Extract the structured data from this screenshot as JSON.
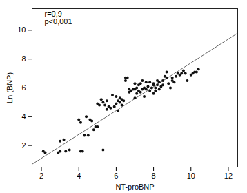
{
  "chart_data": {
    "type": "scatter",
    "xlabel": "NT-proBNP",
    "ylabel": "Ln (BNP)",
    "annotations": [
      "r=0,9",
      "p<0,001"
    ],
    "xlim": [
      1.5,
      12.5
    ],
    "ylim": [
      0.5,
      11.5
    ],
    "xticks": [
      2,
      4,
      6,
      8,
      10,
      12
    ],
    "yticks": [
      2,
      4,
      6,
      8,
      10
    ],
    "series": [
      {
        "type": "scatter",
        "color": "#111111",
        "x": [
          2.1,
          2.2,
          2.9,
          3.0,
          3.0,
          3.2,
          3.3,
          3.5,
          4.0,
          4.1,
          4.1,
          4.2,
          4.3,
          4.4,
          4.5,
          4.6,
          4.7,
          4.8,
          4.9,
          5.0,
          5.0,
          5.1,
          5.2,
          5.3,
          5.3,
          5.4,
          5.5,
          5.5,
          5.6,
          5.7,
          5.8,
          5.9,
          6.0,
          6.0,
          6.1,
          6.1,
          6.2,
          6.2,
          6.3,
          6.3,
          6.4,
          6.5,
          6.5,
          6.6,
          6.7,
          6.7,
          6.8,
          6.9,
          7.0,
          7.0,
          7.0,
          7.1,
          7.1,
          7.2,
          7.2,
          7.3,
          7.3,
          7.4,
          7.4,
          7.5,
          7.5,
          7.6,
          7.6,
          7.7,
          7.8,
          7.8,
          7.9,
          8.0,
          8.0,
          8.0,
          8.1,
          8.1,
          8.2,
          8.2,
          8.3,
          8.3,
          8.4,
          8.5,
          8.5,
          8.6,
          8.7,
          8.7,
          8.8,
          8.9,
          9.0,
          9.0,
          9.1,
          9.2,
          9.3,
          9.4,
          9.5,
          9.6,
          9.7,
          9.8,
          10.0,
          10.1,
          10.2,
          10.3,
          10.4
        ],
        "values": [
          1.6,
          1.5,
          1.5,
          2.3,
          1.6,
          2.4,
          1.6,
          1.7,
          3.8,
          3.6,
          1.6,
          1.6,
          2.7,
          4.0,
          2.7,
          3.8,
          3.7,
          3.1,
          3.3,
          4.9,
          3.3,
          4.8,
          5.2,
          5.0,
          1.7,
          4.8,
          4.5,
          5.1,
          4.7,
          4.6,
          5.5,
          4.7,
          4.9,
          5.4,
          5.1,
          4.4,
          5.3,
          5.0,
          4.8,
          5.2,
          5.1,
          6.7,
          6.5,
          6.7,
          5.9,
          5.7,
          5.8,
          5.9,
          5.3,
          5.9,
          6.3,
          5.6,
          6.0,
          5.8,
          6.2,
          5.7,
          6.3,
          5.9,
          6.5,
          5.4,
          6.0,
          5.9,
          6.4,
          6.1,
          5.8,
          6.4,
          6.0,
          6.2,
          6.3,
          5.6,
          6.0,
          5.8,
          6.5,
          6.2,
          6.4,
          5.9,
          6.1,
          6.2,
          6.5,
          6.8,
          6.7,
          7.1,
          6.3,
          6.0,
          6.5,
          6.7,
          6.4,
          6.8,
          7.0,
          6.9,
          7.0,
          7.2,
          7.0,
          6.5,
          6.9,
          7.0,
          7.1,
          7.1,
          7.3
        ]
      },
      {
        "type": "line",
        "color": "#666666",
        "x": [
          1.5,
          12.5
        ],
        "values": [
          0.7,
          9.8
        ]
      }
    ]
  }
}
